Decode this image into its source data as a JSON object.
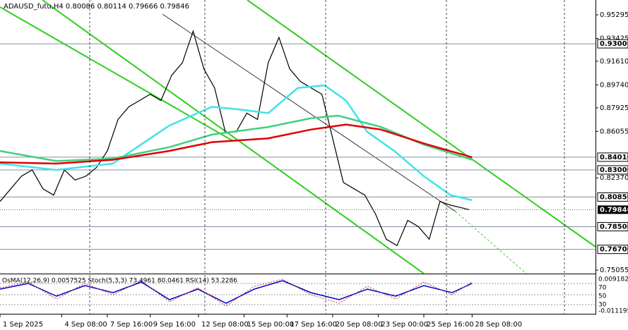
{
  "chart_data": {
    "type": "line",
    "title": "ADAUSD_futu,H4  0.80086 0.80114 0.79666 0.79846",
    "xlim": [
      0,
      222
    ],
    "xticks": [
      {
        "value": 0,
        "label": "1 Sep 2025"
      },
      {
        "value": 23,
        "label": "4 Sep 08:00"
      },
      {
        "value": 40,
        "label": "7 Sep 16:00"
      },
      {
        "value": 56,
        "label": "9 Sep 16:00"
      },
      {
        "value": 74,
        "label": "12 Sep 08:00"
      },
      {
        "value": 91,
        "label": "15 Sep 00:00"
      },
      {
        "value": 107,
        "label": "17 Sep 16:00"
      },
      {
        "value": 124,
        "label": "20 Sep 08:00"
      },
      {
        "value": 141,
        "label": "23 Sep 00:00"
      },
      {
        "value": 158,
        "label": "25 Sep 16:00"
      },
      {
        "value": 176,
        "label": "28 Sep 08:00"
      }
    ],
    "ylim": [
      0.7478,
      0.9647
    ],
    "yticks": [
      0.95295,
      0.93425,
      {
        "value": 0.9161,
        "label": "0.91610"
      },
      {
        "value": 0.8974,
        "label": "0.89740"
      },
      0.87925,
      0.86055,
      {
        "value": 0.8237,
        "label": "0.82370"
      },
      0.75055
    ],
    "levels": [
      {
        "value": 0.93,
        "label": "0.93000"
      },
      {
        "value": 0.8401,
        "label": "0.84010"
      },
      {
        "value": 0.83,
        "label": "0.83000"
      },
      {
        "value": 0.8085,
        "label": "0.80850"
      },
      {
        "value": 0.785,
        "label": "0.78500"
      },
      {
        "value": 0.767,
        "label": "0.76700"
      }
    ],
    "last_price": {
      "value": 0.79846,
      "label": "0.79846"
    },
    "series": [
      {
        "color": "#000000",
        "x": [
          0,
          4,
          8,
          12,
          16,
          20,
          24,
          28,
          32,
          36,
          40,
          44,
          48,
          52,
          56,
          60,
          64,
          68,
          72,
          76,
          80,
          84,
          88,
          92,
          96,
          100,
          104,
          108,
          112,
          116,
          120,
          124,
          128,
          132,
          136,
          140,
          144,
          148,
          152,
          156,
          160,
          164,
          168,
          172,
          175
        ],
        "values": [
          0.805,
          0.815,
          0.825,
          0.83,
          0.815,
          0.81,
          0.83,
          0.822,
          0.825,
          0.832,
          0.845,
          0.87,
          0.88,
          0.885,
          0.89,
          0.885,
          0.905,
          0.915,
          0.94,
          0.91,
          0.895,
          0.86,
          0.86,
          0.875,
          0.87,
          0.915,
          0.935,
          0.91,
          0.9,
          0.895,
          0.89,
          0.855,
          0.82,
          0.815,
          0.81,
          0.795,
          0.775,
          0.77,
          0.79,
          0.785,
          0.775,
          0.805,
          0.802,
          0.8,
          0.79846
        ]
      },
      {
        "color": "#3fe3ea",
        "x": [
          0,
          21,
          42,
          63,
          79,
          89,
          100,
          111,
          121,
          129,
          137,
          147,
          158,
          168,
          176
        ],
        "values": [
          0.835,
          0.83,
          0.835,
          0.865,
          0.88,
          0.878,
          0.875,
          0.895,
          0.897,
          0.885,
          0.86,
          0.845,
          0.825,
          0.81,
          0.806
        ]
      },
      {
        "color": "#40d080",
        "x": [
          0,
          21,
          42,
          63,
          79,
          100,
          116,
          126,
          142,
          158,
          176
        ],
        "values": [
          0.845,
          0.837,
          0.839,
          0.848,
          0.858,
          0.864,
          0.871,
          0.873,
          0.864,
          0.85,
          0.838
        ]
      },
      {
        "color": "#e00000",
        "x": [
          0,
          21,
          42,
          63,
          79,
          100,
          116,
          129,
          142,
          158,
          176
        ],
        "values": [
          0.836,
          0.835,
          0.838,
          0.845,
          0.852,
          0.855,
          0.862,
          0.866,
          0.862,
          0.851,
          0.84
        ]
      }
    ],
    "indicator": {
      "label": "OsMA(12,26,9) 0.0057525  Stoch(5,3,3) 73.4961 80.0461  RSI(14) 53.2286",
      "axis_labels": [
        "0.009182",
        "70",
        "50",
        "30",
        "-0.011195"
      ]
    }
  }
}
